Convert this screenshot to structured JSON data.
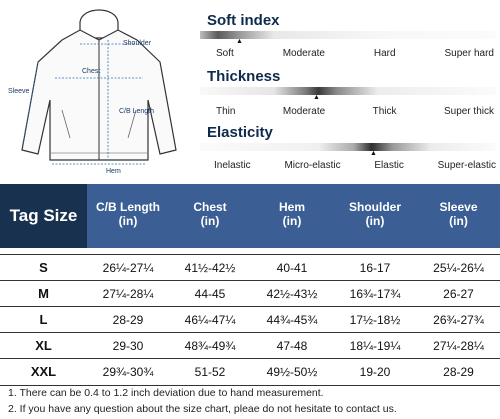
{
  "diagram": {
    "labels": {
      "shoulder": "Shoulder",
      "chest": "Chest",
      "sleeve": "Sleeve",
      "cb_length": "C/B Length",
      "hem": "Hem"
    }
  },
  "scales": [
    {
      "title": "Soft index",
      "labels": [
        "Soft",
        "Moderate",
        "Hard",
        "Super hard"
      ],
      "selected": "Soft"
    },
    {
      "title": "Thickness",
      "labels": [
        "Thin",
        "Moderate",
        "Thick",
        "Super thick"
      ],
      "selected": "Moderate"
    },
    {
      "title": "Elasticity",
      "labels": [
        "Inelastic",
        "Micro-elastic",
        "Elastic",
        "Super-elastic"
      ],
      "selected": "Elastic"
    }
  ],
  "table": {
    "headers": [
      {
        "label": "Tag Size",
        "unit": ""
      },
      {
        "label": "C/B Length",
        "unit": "(in)"
      },
      {
        "label": "Chest",
        "unit": "(in)"
      },
      {
        "label": "Hem",
        "unit": "(in)"
      },
      {
        "label": "Shoulder",
        "unit": "(in)"
      },
      {
        "label": "Sleeve",
        "unit": "(in)"
      }
    ],
    "rows": [
      [
        "S",
        "26¼-27¼",
        "41½-42½",
        "40-41",
        "16-17",
        "25¼-26¼"
      ],
      [
        "M",
        "27¼-28¼",
        "44-45",
        "42½-43½",
        "16¾-17¾",
        "26-27"
      ],
      [
        "L",
        "28-29",
        "46¼-47¼",
        "44¾-45¾",
        "17½-18½",
        "26¾-27¾"
      ],
      [
        "XL",
        "29-30",
        "48¾-49¾",
        "47-48",
        "18¼-19¼",
        "27¼-28¼"
      ],
      [
        "XXL",
        "29¾-30¾",
        "51-52",
        "49½-50½",
        "19-20",
        "28-29"
      ]
    ]
  },
  "notes": [
    "1. There can be 0.4 to 1.2 inch deviation due to hand measurement.",
    "2. If you have any question about the size chart, pleae do not hesitate to contact us."
  ],
  "colors": {
    "header_bg": "#3b5f95",
    "tag_bg": "#17314f",
    "title": "#0e2a4d"
  }
}
